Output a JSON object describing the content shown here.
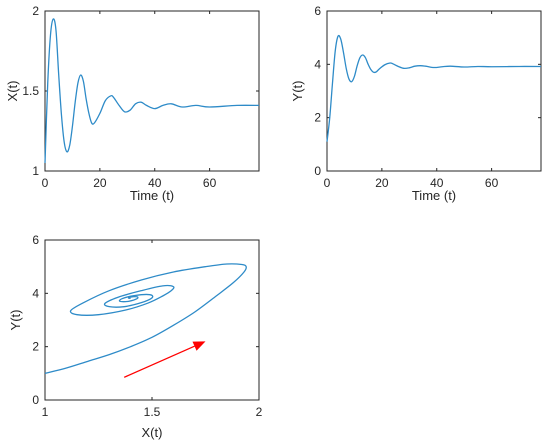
{
  "chart_data": [
    {
      "type": "line",
      "title": "",
      "xlabel": "Time (t)",
      "ylabel": "X(t)",
      "xlim": [
        0,
        78
      ],
      "ylim": [
        1,
        2
      ],
      "xticks": [
        0,
        20,
        40,
        60
      ],
      "yticks": [
        1,
        1.5,
        2
      ],
      "grid": false,
      "legend": "none",
      "line_color": "#2e8bc8",
      "series": [
        {
          "values_sampled": [
            [
              0,
              1.05
            ],
            [
              1,
              1.55
            ],
            [
              2,
              1.85
            ],
            [
              3,
              1.95
            ],
            [
              4,
              1.88
            ],
            [
              5,
              1.6
            ],
            [
              6,
              1.35
            ],
            [
              7,
              1.18
            ],
            [
              8,
              1.12
            ],
            [
              9,
              1.16
            ],
            [
              10,
              1.28
            ],
            [
              11,
              1.43
            ],
            [
              12,
              1.55
            ],
            [
              13,
              1.6
            ],
            [
              14,
              1.56
            ],
            [
              15,
              1.45
            ],
            [
              16,
              1.36
            ],
            [
              17,
              1.3
            ],
            [
              18,
              1.3
            ],
            [
              20,
              1.36
            ],
            [
              22,
              1.44
            ],
            [
              24,
              1.47
            ],
            [
              25,
              1.46
            ],
            [
              27,
              1.41
            ],
            [
              29,
              1.37
            ],
            [
              31,
              1.38
            ],
            [
              33,
              1.42
            ],
            [
              35,
              1.43
            ],
            [
              37,
              1.41
            ],
            [
              40,
              1.39
            ],
            [
              43,
              1.41
            ],
            [
              46,
              1.42
            ],
            [
              50,
              1.4
            ],
            [
              55,
              1.41
            ],
            [
              60,
              1.4
            ],
            [
              70,
              1.41
            ],
            [
              78,
              1.41
            ]
          ]
        }
      ]
    },
    {
      "type": "line",
      "title": "",
      "xlabel": "Time (t)",
      "ylabel": "Y(t)",
      "xlim": [
        0,
        78
      ],
      "ylim": [
        0,
        6
      ],
      "xticks": [
        0,
        20,
        40,
        60
      ],
      "yticks": [
        0,
        2,
        4,
        6
      ],
      "grid": false,
      "legend": "none",
      "line_color": "#2e8bc8",
      "series": [
        {
          "values_sampled": [
            [
              0,
              1.1
            ],
            [
              1,
              2.0
            ],
            [
              2,
              3.3
            ],
            [
              3,
              4.5
            ],
            [
              4,
              5.05
            ],
            [
              5,
              4.95
            ],
            [
              6,
              4.45
            ],
            [
              7,
              3.85
            ],
            [
              8,
              3.45
            ],
            [
              9,
              3.35
            ],
            [
              10,
              3.55
            ],
            [
              11,
              3.95
            ],
            [
              12,
              4.25
            ],
            [
              13,
              4.35
            ],
            [
              14,
              4.25
            ],
            [
              15,
              4.0
            ],
            [
              16,
              3.8
            ],
            [
              17,
              3.7
            ],
            [
              18,
              3.72
            ],
            [
              19,
              3.82
            ],
            [
              21,
              3.98
            ],
            [
              23,
              4.05
            ],
            [
              24,
              4.02
            ],
            [
              26,
              3.92
            ],
            [
              28,
              3.85
            ],
            [
              30,
              3.87
            ],
            [
              32,
              3.93
            ],
            [
              34,
              3.95
            ],
            [
              36,
              3.93
            ],
            [
              39,
              3.88
            ],
            [
              42,
              3.91
            ],
            [
              45,
              3.93
            ],
            [
              50,
              3.9
            ],
            [
              55,
              3.92
            ],
            [
              60,
              3.91
            ],
            [
              70,
              3.92
            ],
            [
              78,
              3.92
            ]
          ]
        }
      ]
    },
    {
      "type": "line",
      "title": "",
      "xlabel": "X(t)",
      "ylabel": "Y(t)",
      "xlim": [
        1,
        2
      ],
      "ylim": [
        0,
        6
      ],
      "xticks": [
        1,
        1.5,
        2
      ],
      "yticks": [
        0,
        2,
        4,
        6
      ],
      "grid": false,
      "legend": "none",
      "line_color": "#2e8bc8",
      "arrow_color": "#ff0000",
      "arrow": {
        "from": [
          1.37,
          0.85
        ],
        "to": [
          1.75,
          2.2
        ]
      },
      "series": [
        {
          "values_sampled": [
            [
              1.0,
              1.0
            ],
            [
              1.1,
              1.2
            ],
            [
              1.2,
              1.45
            ],
            [
              1.3,
              1.7
            ],
            [
              1.4,
              2.0
            ],
            [
              1.5,
              2.35
            ],
            [
              1.6,
              2.8
            ],
            [
              1.7,
              3.3
            ],
            [
              1.8,
              3.9
            ],
            [
              1.88,
              4.4
            ],
            [
              1.93,
              4.8
            ],
            [
              1.94,
              5.0
            ],
            [
              1.92,
              5.08
            ],
            [
              1.85,
              5.1
            ],
            [
              1.75,
              5.0
            ],
            [
              1.6,
              4.8
            ],
            [
              1.45,
              4.5
            ],
            [
              1.3,
              4.1
            ],
            [
              1.18,
              3.65
            ],
            [
              1.12,
              3.35
            ],
            [
              1.15,
              3.2
            ],
            [
              1.25,
              3.2
            ],
            [
              1.38,
              3.38
            ],
            [
              1.48,
              3.63
            ],
            [
              1.55,
              3.9
            ],
            [
              1.59,
              4.1
            ],
            [
              1.6,
              4.25
            ],
            [
              1.55,
              4.28
            ],
            [
              1.45,
              4.1
            ],
            [
              1.34,
              3.85
            ],
            [
              1.28,
              3.62
            ],
            [
              1.3,
              3.5
            ],
            [
              1.37,
              3.5
            ],
            [
              1.45,
              3.65
            ],
            [
              1.5,
              3.83
            ],
            [
              1.49,
              3.95
            ],
            [
              1.42,
              3.92
            ],
            [
              1.36,
              3.8
            ],
            [
              1.35,
              3.7
            ],
            [
              1.39,
              3.7
            ],
            [
              1.43,
              3.8
            ],
            [
              1.43,
              3.87
            ],
            [
              1.4,
              3.86
            ],
            [
              1.39,
              3.82
            ],
            [
              1.4,
              3.81
            ]
          ]
        }
      ]
    }
  ]
}
